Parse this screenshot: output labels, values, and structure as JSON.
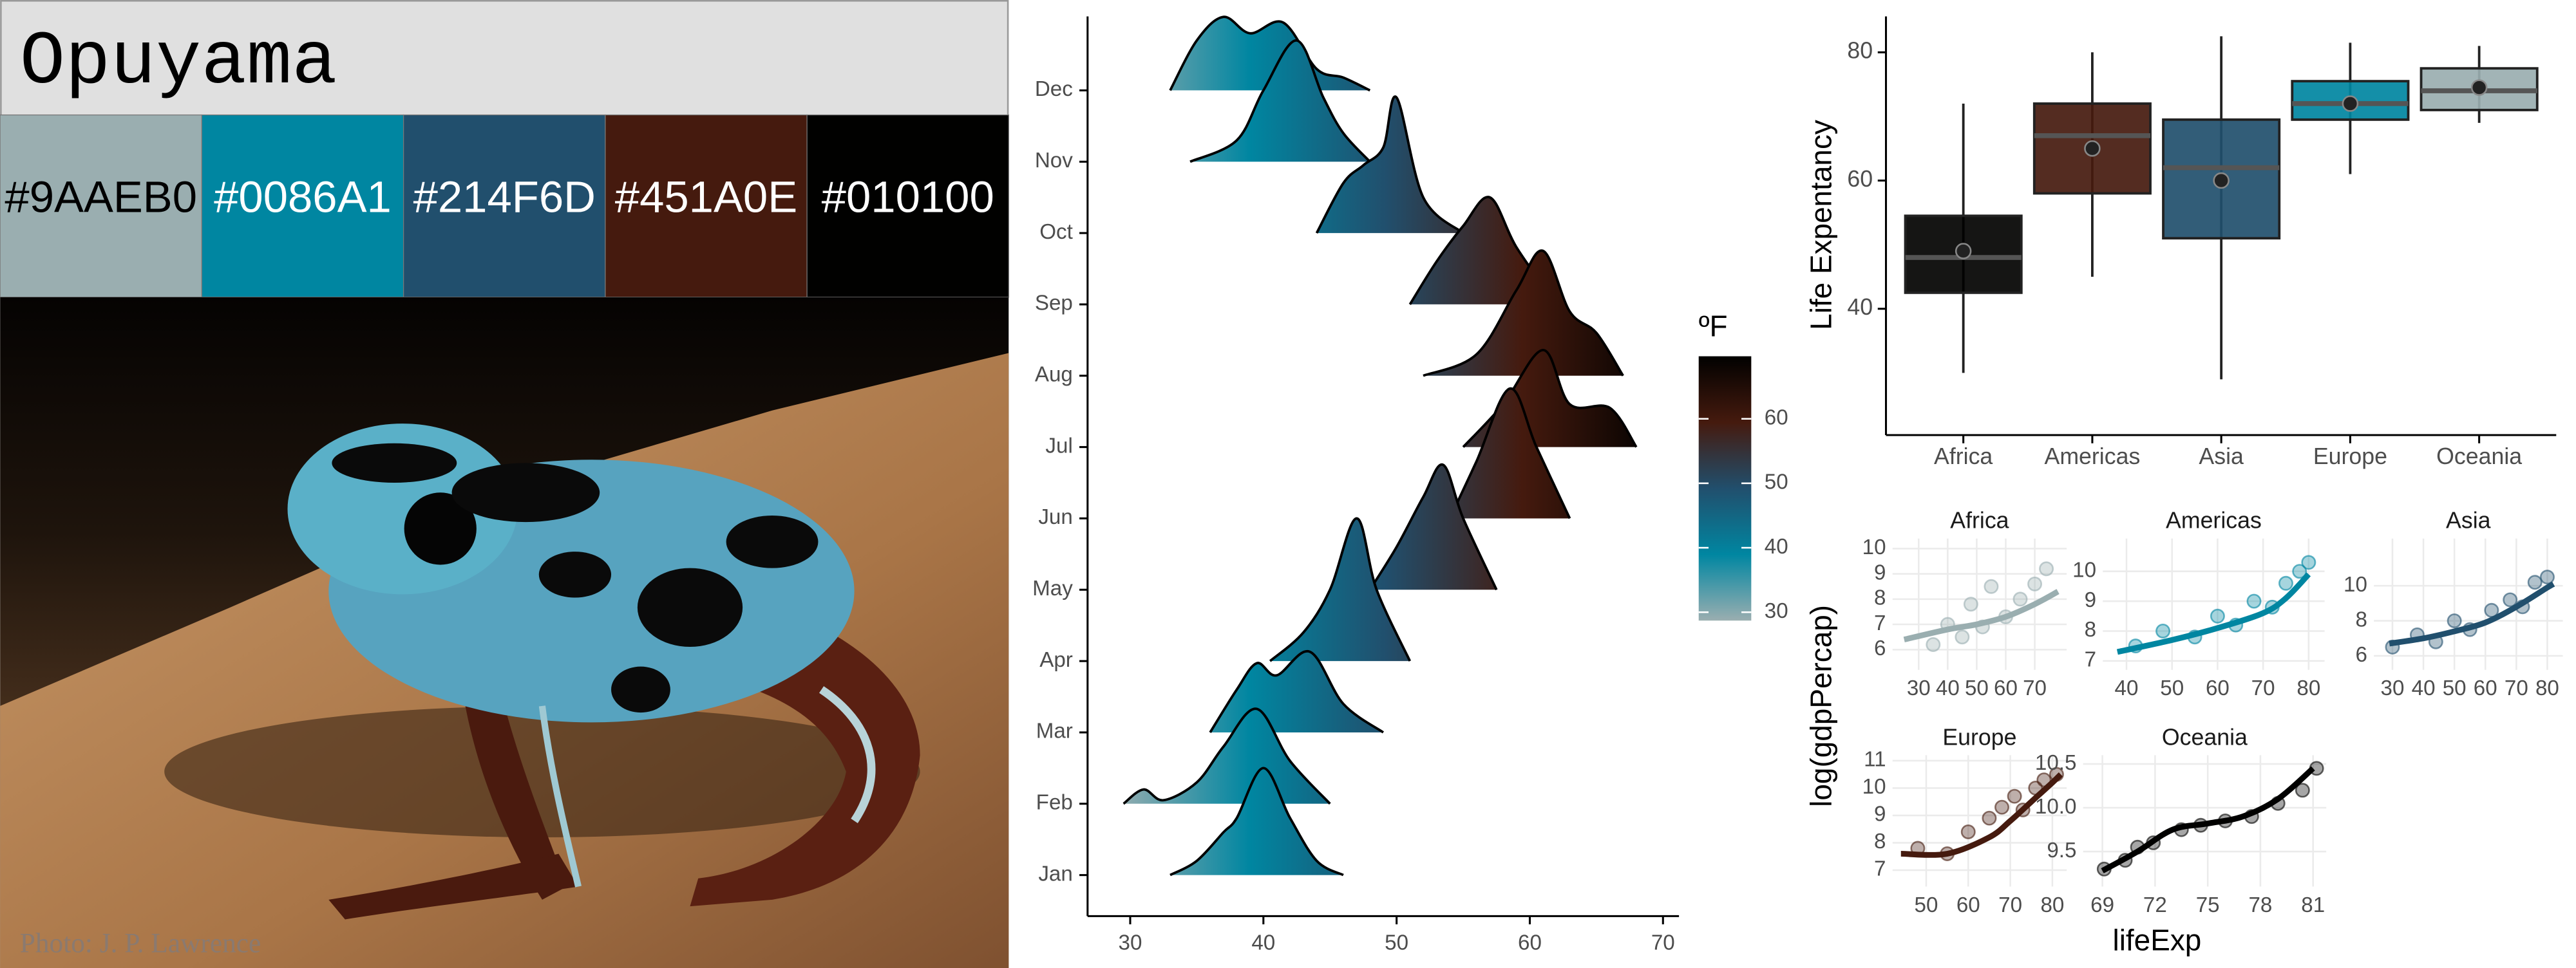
{
  "palette": {
    "title": "Opuyama",
    "swatches": [
      {
        "label": "#9AAEB0",
        "color": "#9AAEB0"
      },
      {
        "label": "#0086A1",
        "color": "#0086A1"
      },
      {
        "label": "#214F6D",
        "color": "#214F6D"
      },
      {
        "label": "#451A0E",
        "color": "#451A0E"
      },
      {
        "label": "#010100",
        "color": "#010100"
      }
    ],
    "photo_credit": "Photo: J. P. Lawrence"
  },
  "chart_data": [
    {
      "type": "ridgeline",
      "categories": [
        "Jan",
        "Feb",
        "Mar",
        "Apr",
        "May",
        "Jun",
        "Jul",
        "Aug",
        "Sep",
        "Oct",
        "Nov",
        "Dec"
      ],
      "xlim": [
        26.8,
        71.2
      ],
      "xticks": [
        30,
        40,
        50,
        60,
        70
      ],
      "series": [
        {
          "x": [
            33,
            35,
            37,
            38,
            40,
            42,
            44,
            46
          ],
          "values": [
            0,
            0.2,
            0.6,
            0.8,
            1.5,
            0.8,
            0.2,
            0
          ]
        },
        {
          "x": [
            29.5,
            31,
            32.5,
            35,
            37,
            39.5,
            42,
            45
          ],
          "values": [
            0,
            0.2,
            0.05,
            0.3,
            0.8,
            1.33,
            0.6,
            0
          ]
        },
        {
          "x": [
            36,
            38,
            39.5,
            41,
            43.5,
            46,
            49
          ],
          "values": [
            0,
            0.6,
            0.97,
            0.8,
            1.13,
            0.4,
            0
          ]
        },
        {
          "x": [
            40.5,
            43,
            45,
            47,
            48.5,
            51
          ],
          "values": [
            0,
            0.4,
            1.0,
            2.0,
            1.0,
            0
          ]
        },
        {
          "x": [
            48,
            50,
            52,
            53.5,
            55,
            57.5
          ],
          "values": [
            0,
            0.6,
            1.3,
            1.75,
            1.0,
            0
          ]
        },
        {
          "x": [
            54,
            56,
            58.5,
            60.5,
            63
          ],
          "values": [
            0,
            0.8,
            1.82,
            1.0,
            0
          ]
        },
        {
          "x": [
            55,
            58,
            61,
            63,
            66,
            68
          ],
          "values": [
            0,
            0.6,
            1.36,
            0.6,
            0.55,
            0
          ]
        },
        {
          "x": [
            52,
            56,
            59,
            61,
            63,
            65,
            67
          ],
          "values": [
            0,
            0.3,
            1.2,
            1.75,
            0.9,
            0.6,
            0
          ]
        },
        {
          "x": [
            51,
            53,
            55,
            57,
            59,
            62
          ],
          "values": [
            0,
            0.6,
            1.1,
            1.5,
            0.8,
            0
          ]
        },
        {
          "x": [
            44,
            46,
            47.5,
            49,
            50,
            52,
            55
          ],
          "values": [
            0,
            0.7,
            0.95,
            1.2,
            1.9,
            0.5,
            0
          ]
        },
        {
          "x": [
            34.5,
            38,
            40,
            42.5,
            44.5,
            46,
            48
          ],
          "values": [
            0,
            0.3,
            1.0,
            1.7,
            0.9,
            0.4,
            0
          ]
        },
        {
          "x": [
            33,
            35,
            37,
            39,
            41.5,
            44,
            46,
            48
          ],
          "values": [
            0,
            0.7,
            1.03,
            0.8,
            0.95,
            0.3,
            0.18,
            0
          ]
        }
      ],
      "colorbar": {
        "title": "ºF",
        "lim": [
          28.7,
          69.7
        ],
        "ticks": [
          30,
          40,
          50,
          60
        ],
        "colors": [
          "#9AAEB0",
          "#0086A1",
          "#214F6D",
          "#451A0E",
          "#010100"
        ]
      }
    },
    {
      "type": "box",
      "ylabel": "Life Expentancy",
      "categories": [
        "Africa",
        "Americas",
        "Asia",
        "Europe",
        "Oceania"
      ],
      "colors": [
        "#010100",
        "#451A0E",
        "#214F6D",
        "#0086A1",
        "#9AAEB0"
      ],
      "ylim": [
        20.3,
        85.6
      ],
      "yticks": [
        40,
        60,
        80
      ],
      "whisker_low": [
        30,
        45,
        29,
        61,
        69
      ],
      "q1": [
        42.5,
        58,
        51,
        69.5,
        71
      ],
      "median": [
        48,
        67,
        62,
        72,
        74
      ],
      "q3": [
        54.5,
        72,
        69.5,
        75.5,
        77.5
      ],
      "whisker_high": [
        72,
        80,
        82.5,
        81.5,
        81
      ],
      "mean": [
        49,
        65,
        60,
        72,
        74.5
      ]
    },
    {
      "type": "scatter",
      "xlabel": "lifeExp",
      "ylabel": "log(gdpPercap)",
      "panels": [
        {
          "title": "Africa",
          "color": "#9AAEB0",
          "xlim": [
            21,
            81
          ],
          "xticks": [
            30,
            40,
            50,
            60,
            70
          ],
          "ylim": [
            5.2,
            10.4
          ],
          "yticks": [
            6,
            7,
            8,
            9,
            10
          ],
          "points": {
            "x": [
              35,
              40,
              45,
              48,
              52,
              55,
              60,
              65,
              70,
              74
            ],
            "values": [
              6.2,
              7.0,
              6.5,
              7.8,
              6.9,
              8.5,
              7.3,
              8.0,
              8.6,
              9.2
            ]
          },
          "line": {
            "x": [
              25,
              40,
              50,
              60,
              70,
              78
            ],
            "values": [
              6.4,
              6.8,
              7.0,
              7.3,
              7.8,
              8.3
            ]
          }
        },
        {
          "title": "Americas",
          "color": "#0086A1",
          "xlim": [
            34.8,
            83.5
          ],
          "xticks": [
            40,
            50,
            60,
            70,
            80
          ],
          "ylim": [
            6.7,
            11.1
          ],
          "yticks": [
            7,
            8,
            9,
            10
          ],
          "points": {
            "x": [
              42,
              48,
              55,
              60,
              64,
              68,
              72,
              75,
              78,
              80
            ],
            "values": [
              7.5,
              8.0,
              7.8,
              8.5,
              8.2,
              9.0,
              8.8,
              9.6,
              10.0,
              10.3
            ]
          },
          "line": {
            "x": [
              38,
              50,
              60,
              70,
              75,
              80
            ],
            "values": [
              7.3,
              7.7,
              8.1,
              8.6,
              9.1,
              9.9
            ]
          }
        },
        {
          "title": "Asia",
          "color": "#214F6D",
          "xlim": [
            24,
            85
          ],
          "xticks": [
            30,
            40,
            50,
            60,
            70,
            80
          ],
          "ylim": [
            5.2,
            12.7
          ],
          "yticks": [
            6,
            8,
            10
          ],
          "points": {
            "x": [
              30,
              38,
              44,
              50,
              55,
              62,
              68,
              72,
              76,
              80
            ],
            "values": [
              6.5,
              7.2,
              6.8,
              8.0,
              7.5,
              8.6,
              9.2,
              8.8,
              10.2,
              10.5
            ]
          },
          "line": {
            "x": [
              29,
              40,
              50,
              60,
              70,
              80,
              82
            ],
            "values": [
              6.7,
              7.0,
              7.4,
              7.9,
              8.8,
              9.9,
              10.1
            ]
          }
        },
        {
          "title": "Europe",
          "color": "#451A0E",
          "xlim": [
            42,
            83.4
          ],
          "xticks": [
            50,
            60,
            70,
            80
          ],
          "ylim": [
            6.4,
            11.2
          ],
          "yticks": [
            7,
            8,
            9,
            10,
            11
          ],
          "points": {
            "x": [
              48,
              55,
              60,
              65,
              68,
              71,
              73,
              76,
              78,
              81
            ],
            "values": [
              7.8,
              7.6,
              8.4,
              8.9,
              9.3,
              9.7,
              9.2,
              10.0,
              10.3,
              10.5
            ]
          },
          "line": {
            "x": [
              44,
              55,
              65,
              70,
              75,
              80,
              82
            ],
            "values": [
              7.6,
              7.6,
              8.2,
              8.8,
              9.5,
              10.2,
              10.5
            ]
          }
        },
        {
          "title": "Oceania",
          "color": "#010100",
          "xlim": [
            67.9,
            81.75
          ],
          "xticks": [
            69,
            72,
            75,
            78,
            81
          ],
          "ylim": [
            9.1,
            10.6
          ],
          "yticks": [
            9.5,
            {
              "value": 10,
              "label": "10.0"
            },
            10.5
          ],
          "points": {
            "x": [
              69.1,
              70.3,
              71,
              71.9,
              73.5,
              74.6,
              76,
              77.5,
              79,
              80.4,
              81.2
            ],
            "values": [
              9.3,
              9.4,
              9.55,
              9.6,
              9.75,
              9.8,
              9.85,
              9.9,
              10.05,
              10.2,
              10.45
            ]
          },
          "line": {
            "x": [
              69,
              71,
              73,
              75,
              77,
              79,
              81
            ],
            "values": [
              9.28,
              9.5,
              9.75,
              9.82,
              9.9,
              10.1,
              10.45
            ]
          }
        }
      ]
    }
  ]
}
